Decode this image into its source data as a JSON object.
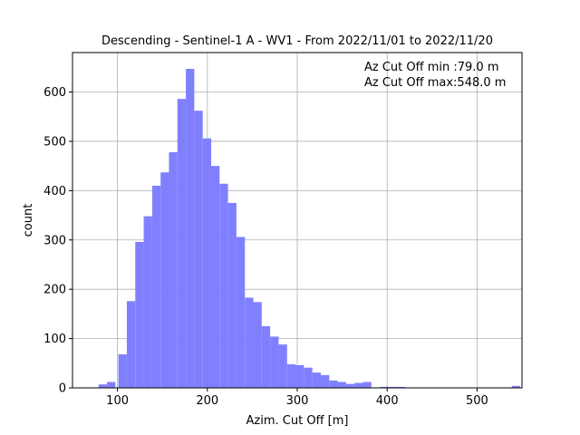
{
  "chart_data": {
    "type": "bar",
    "title": "Descending - Sentinel-1 A - WV1 - From 2022/11/01 to 2022/11/20",
    "xlabel": "Azim. Cut Off [m]",
    "ylabel": "count",
    "xlim": [
      50,
      550
    ],
    "ylim": [
      0,
      680
    ],
    "xticks": [
      100,
      200,
      300,
      400,
      500
    ],
    "yticks": [
      0,
      100,
      200,
      300,
      400,
      500,
      600
    ],
    "grid": true,
    "bar_color": "#8080ff",
    "bin_width": 9.38,
    "bins": [
      {
        "start": 79.0,
        "count": 7
      },
      {
        "start": 88.4,
        "count": 12
      },
      {
        "start": 97.8,
        "count": 0
      },
      {
        "start": 101.0,
        "count": 68
      },
      {
        "start": 110.4,
        "count": 176
      },
      {
        "start": 119.8,
        "count": 296
      },
      {
        "start": 129.2,
        "count": 348
      },
      {
        "start": 138.6,
        "count": 410
      },
      {
        "start": 148.0,
        "count": 437
      },
      {
        "start": 157.3,
        "count": 478
      },
      {
        "start": 166.7,
        "count": 586
      },
      {
        "start": 176.1,
        "count": 647
      },
      {
        "start": 185.5,
        "count": 562
      },
      {
        "start": 194.9,
        "count": 506
      },
      {
        "start": 204.2,
        "count": 450
      },
      {
        "start": 213.6,
        "count": 414
      },
      {
        "start": 223.0,
        "count": 375
      },
      {
        "start": 232.4,
        "count": 306
      },
      {
        "start": 241.8,
        "count": 183
      },
      {
        "start": 251.1,
        "count": 174
      },
      {
        "start": 260.5,
        "count": 125
      },
      {
        "start": 269.9,
        "count": 104
      },
      {
        "start": 279.3,
        "count": 88
      },
      {
        "start": 288.7,
        "count": 48
      },
      {
        "start": 298.0,
        "count": 46
      },
      {
        "start": 307.4,
        "count": 41
      },
      {
        "start": 316.8,
        "count": 31
      },
      {
        "start": 326.2,
        "count": 26
      },
      {
        "start": 335.6,
        "count": 15
      },
      {
        "start": 344.9,
        "count": 12
      },
      {
        "start": 354.3,
        "count": 8
      },
      {
        "start": 363.7,
        "count": 10
      },
      {
        "start": 373.1,
        "count": 12
      },
      {
        "start": 382.5,
        "count": 0
      },
      {
        "start": 391.8,
        "count": 2
      },
      {
        "start": 401.2,
        "count": 2
      },
      {
        "start": 410.6,
        "count": 2
      },
      {
        "start": 538.6,
        "count": 4
      }
    ],
    "annotations": [
      "Az Cut Off min :79.0 m",
      "Az Cut Off max:548.0 m"
    ]
  }
}
